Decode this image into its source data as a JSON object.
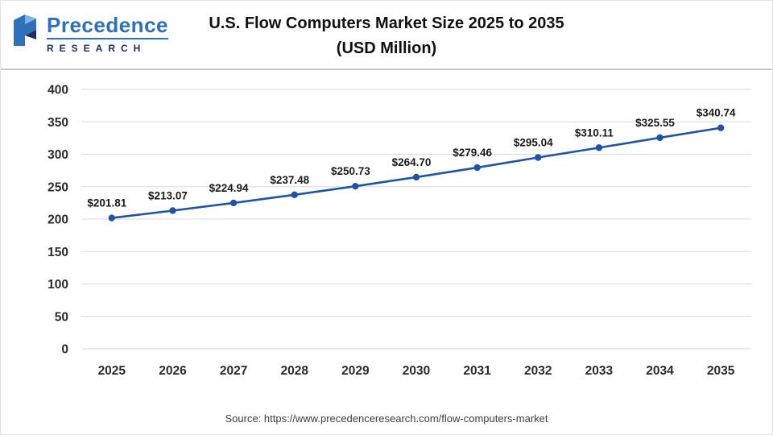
{
  "header": {
    "logo": {
      "line1": "Precedence",
      "line2": "RESEARCH"
    },
    "title_line1": "U.S. Flow Computers Market Size 2025 to 2035",
    "title_line2": "(USD Million)"
  },
  "chart_data": {
    "type": "line",
    "title": "U.S. Flow Computers Market Size 2025 to 2035 (USD Million)",
    "xlabel": "",
    "ylabel": "",
    "categories": [
      "2025",
      "2026",
      "2027",
      "2028",
      "2029",
      "2030",
      "2031",
      "2032",
      "2033",
      "2034",
      "2035"
    ],
    "values": [
      201.81,
      213.07,
      224.94,
      237.48,
      250.73,
      264.7,
      279.46,
      295.04,
      310.11,
      325.55,
      340.74
    ],
    "labels": [
      "$201.81",
      "$213.07",
      "$224.94",
      "$237.48",
      "$250.73",
      "$264.70",
      "$279.46",
      "$295.04",
      "$310.11",
      "$325.55",
      "$340.74"
    ],
    "ylim": [
      0,
      400
    ],
    "ytick_step": 50,
    "grid": true,
    "legend": "none",
    "line_color": "#2053a4",
    "marker_color": "#2053a4",
    "grid_color": "#d9d9d9"
  },
  "footer": {
    "source": "Source: https://www.precedenceresearch.com/flow-computers-market"
  }
}
